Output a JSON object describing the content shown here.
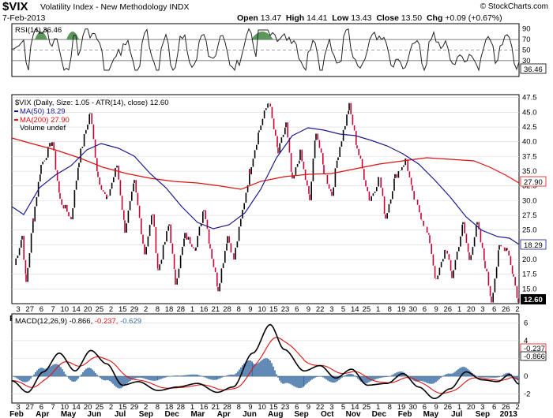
{
  "header": {
    "symbol": "$VIX",
    "name": "Volatility Index - New Methodology",
    "exchange": "INDX",
    "date": "7-Feb-2013",
    "credit": "© StockCharts.com",
    "quote": {
      "open_label": "Open",
      "open": "13.47",
      "high_label": "High",
      "high": "14.41",
      "low_label": "Low",
      "low": "13.43",
      "close_label": "Close",
      "close": "13.50",
      "chg_label": "Chg",
      "chg": "+0.09 (+0.67%)"
    }
  },
  "rsi_panel": {
    "legend": "RSI(14) 36.46",
    "ticks": [
      "90",
      "70",
      "50",
      "30",
      "10"
    ],
    "last_value": "36.46"
  },
  "price_panel": {
    "legend_title": "$VIX (Daily, Size: 1.05 - ATR(14), close) 12.60",
    "legend_ma50": "MA(50) 18.29",
    "legend_ma200": "MA(200) 27.90",
    "legend_volume": "Volume undef",
    "ticks": [
      "47.5",
      "45.0",
      "42.5",
      "40.0",
      "37.5",
      "35.0",
      "32.5",
      "30.0",
      "27.5",
      "25.0",
      "22.5",
      "20.0",
      "17.5",
      "15.0"
    ],
    "last_value": "12.60",
    "ma50_value": "18.29",
    "ma200_value": "27.90"
  },
  "macd_panel": {
    "legend_prefix": "MACD(12,26,9)",
    "legend_macd": "-0.866,",
    "legend_signal": "-0.237,",
    "legend_hist": "-0.629",
    "ticks": [
      "6",
      "4",
      "2",
      "0",
      "-2"
    ],
    "signal_value": "-0.237",
    "macd_value": "-0.866"
  },
  "date_axis": {
    "days": [
      "3",
      "27",
      "6",
      "7",
      "10",
      "14",
      "20",
      "25",
      "2",
      "15",
      "29",
      "2",
      "8",
      "18",
      "28",
      "1",
      "16",
      "21",
      "28",
      "8",
      "9",
      "10",
      "15",
      "23",
      "6",
      "9",
      "22",
      "3",
      "5",
      "14",
      "25",
      "1",
      "8",
      "19",
      "30",
      "6",
      "9",
      "26",
      "1",
      "20",
      "3",
      "6",
      "26",
      "2"
    ],
    "months": [
      "Feb",
      "Apr",
      "May",
      "Jun",
      "Jul",
      "Sep",
      "Dec",
      "Mar",
      "Apr",
      "Jun",
      "Aug",
      "Sep",
      "Oct",
      "Nov",
      "Dec",
      "Feb",
      "May",
      "Jul",
      "Sep",
      "2013"
    ]
  },
  "colors": {
    "up_bar": "#000000",
    "down_bar": "#cc0033",
    "ma50": "#1a1a8c",
    "ma200": "#dd1111",
    "rsi_fill": "#4a8c4a",
    "macd_signal": "#dd1111",
    "macd_hist": "#3a6ea5"
  },
  "chart_data": [
    {
      "type": "line",
      "title": "RSI(14)",
      "last": 36.46,
      "ylim": [
        0,
        100
      ],
      "levels": [
        70,
        50,
        30
      ]
    },
    {
      "type": "bar",
      "title": "$VIX (Daily, Size: 1.05 - ATR(14), close)",
      "last": 12.6,
      "ylim": [
        12.5,
        48
      ],
      "series": [
        {
          "name": "MA(50)",
          "last": 18.29
        },
        {
          "name": "MA(200)",
          "last": 27.9
        }
      ]
    },
    {
      "type": "line",
      "title": "MACD(12,26,9)",
      "ylim": [
        -3,
        7
      ],
      "series": [
        {
          "name": "MACD",
          "last": -0.866
        },
        {
          "name": "Signal",
          "last": -0.237
        },
        {
          "name": "Histogram",
          "last": -0.629
        }
      ]
    }
  ]
}
